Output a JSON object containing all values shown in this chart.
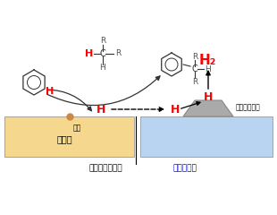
{
  "bg_color": "#ffffff",
  "solid_acid_color": "#f5d78e",
  "metal_support_color": "#b8d4f0",
  "metal_np_color": "#aaaaaa",
  "metal_np_edge_color": "#888888",
  "H_color": "#ff0000",
  "text_color": "#000000",
  "blue_text_color": "#0000cc",
  "gray_color": "#444444",
  "label_solid": "固体酸",
  "label_acid_site": "酸点",
  "label_bottom_black": "粒子間水素移動",
  "label_bottom_blue": "（長距離）",
  "label_metal_np": "金属ナノ粒子",
  "label_H2": "H₂",
  "label_H": "H"
}
